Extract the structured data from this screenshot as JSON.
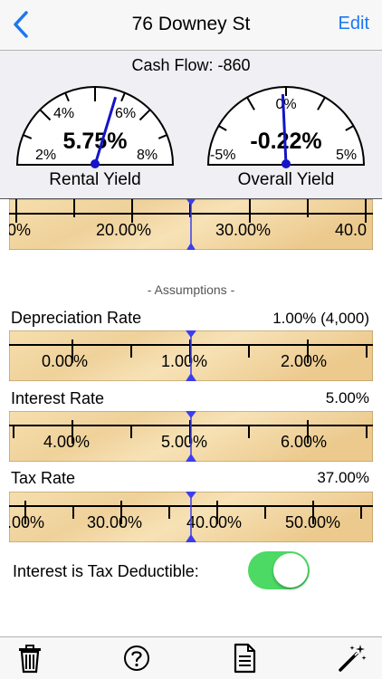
{
  "nav": {
    "back_icon": "chevron-left-icon",
    "title": "76 Downey St",
    "edit_label": "Edit",
    "accent": "#1a78f2"
  },
  "gauges": {
    "cash_flow_label": "Cash Flow: -860",
    "rental": {
      "label": "Rental Yield",
      "value": "5.75%",
      "ticks": [
        "2%",
        "4%",
        "6%",
        "8%"
      ],
      "needle_value": 5.75,
      "range": [
        1,
        9
      ]
    },
    "overall": {
      "label": "Overall Yield",
      "value": "-0.22%",
      "ticks": [
        "-5%",
        "0%",
        "5%"
      ],
      "needle_value": -0.22,
      "range": [
        -7.5,
        7.5
      ]
    }
  },
  "top_ruler": {
    "labels": [
      "0%",
      "20.00%",
      "30.00%",
      "40.0"
    ]
  },
  "assumptions": {
    "heading": "- Assumptions -",
    "depreciation": {
      "label": "Depreciation Rate",
      "value": "1.00%  (4,000)",
      "ruler_labels": [
        "0.00%",
        "1.00%",
        "2.00%"
      ]
    },
    "interest": {
      "label": "Interest Rate",
      "value": "5.00%",
      "ruler_labels": [
        "4.00%",
        "5.00%",
        "6.00%"
      ]
    },
    "tax": {
      "label": "Tax Rate",
      "value": "37.00%",
      "ruler_labels": [
        ".00%",
        "30.00%",
        "40.00%",
        "50.00%"
      ]
    },
    "deductible": {
      "label": "Interest is Tax Deductible:",
      "on": true,
      "on_color": "#4cd964"
    }
  },
  "toolbar": {
    "icons": [
      "trash-icon",
      "help-icon",
      "document-icon",
      "magic-wand-icon"
    ]
  },
  "colors": {
    "needle": "#1414c8",
    "pointer": "#3c3cf0",
    "wood": "#f3d9a4"
  }
}
